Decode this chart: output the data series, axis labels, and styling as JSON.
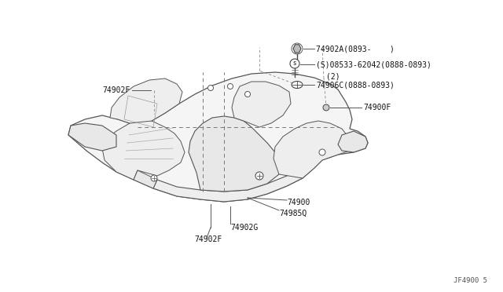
{
  "bg_color": "#ffffff",
  "line_color": "#555555",
  "fill_color": "#f5f5f5",
  "diagram_ref": "JF4900 5",
  "label_74902A": "74902A(0893-    )",
  "label_08533": "(S)08533-62042(0888-0893)",
  "label_08533_2": "(2)",
  "label_74906C": "74906C(0888-0893)",
  "label_74900F": "74900F",
  "label_74902F_top": "74902F",
  "label_74900": "74900",
  "label_74985Q": "74985Q",
  "label_74902G": "74902G",
  "label_74902F_bot": "74902F"
}
